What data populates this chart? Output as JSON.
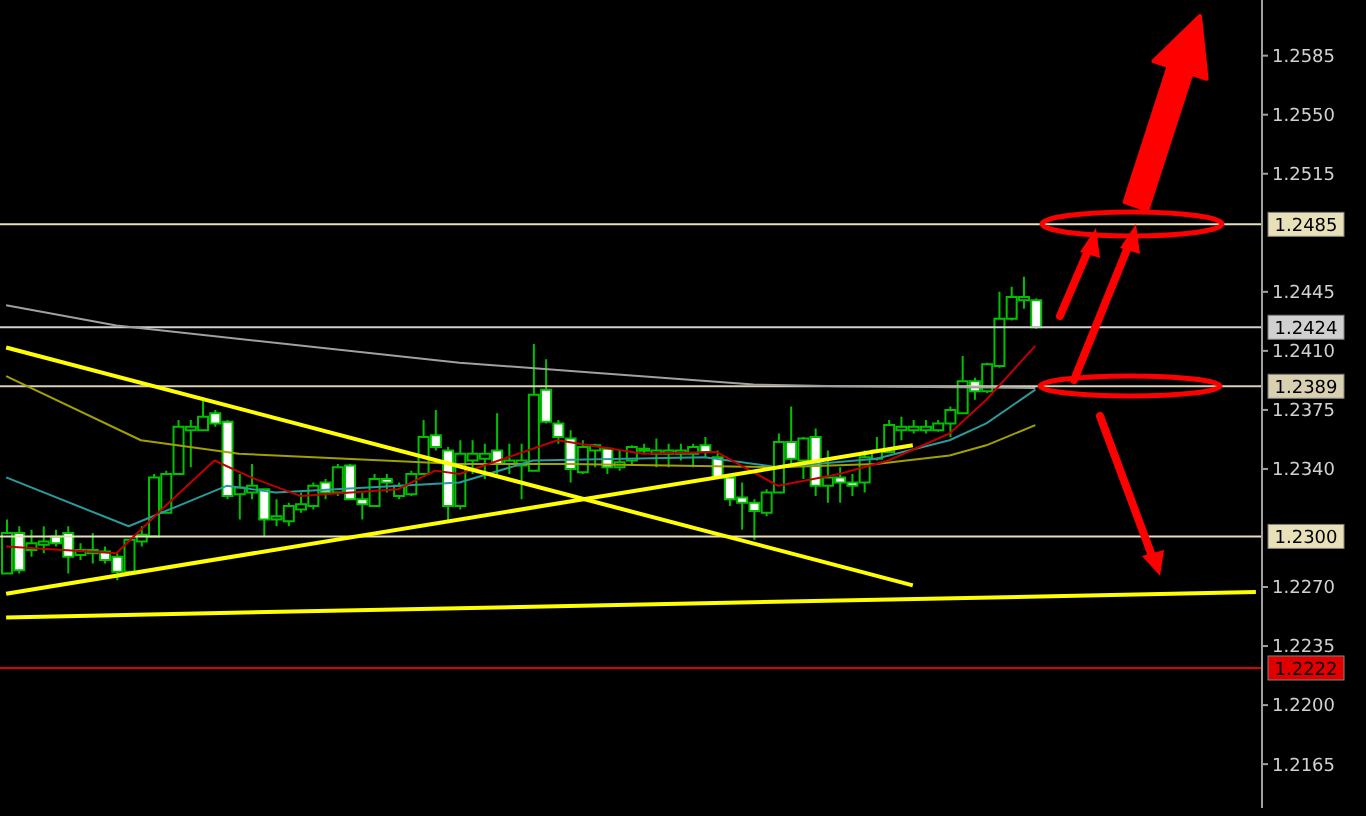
{
  "chart_data": {
    "type": "candlestick",
    "color": "#00c000",
    "categories": [
      null,
      null,
      null,
      null,
      null,
      null,
      null,
      null,
      null,
      null,
      null,
      null,
      null,
      null,
      null,
      null,
      null,
      null,
      null,
      null,
      null,
      null,
      null,
      null,
      null,
      null,
      null,
      null,
      null,
      null,
      null,
      null,
      null,
      null,
      null,
      null,
      null,
      null,
      null,
      null,
      null,
      null,
      null,
      null,
      null,
      null,
      null,
      null,
      null,
      null,
      null,
      null,
      null,
      null,
      null,
      null,
      null,
      null,
      null,
      null,
      null,
      null,
      null,
      null,
      null,
      null,
      null,
      null,
      null,
      null,
      null,
      null,
      null,
      null,
      null,
      null,
      null,
      null,
      null,
      null,
      null,
      null,
      null,
      null,
      null,
      null,
      null,
      null,
      null,
      null,
      null,
      null,
      null,
      null,
      null,
      null,
      null,
      null,
      null,
      null,
      null,
      null,
      null
    ],
    "ohlc": [
      [
        1.2278,
        1.231,
        1.2278,
        1.2302
      ],
      [
        1.2302,
        1.2306,
        1.2278,
        1.228
      ],
      [
        1.2292,
        1.2304,
        1.2288,
        1.2296
      ],
      [
        1.2295,
        1.2306,
        1.229,
        1.2297
      ],
      [
        1.23,
        1.2304,
        1.2294,
        1.2296
      ],
      [
        1.2302,
        1.2306,
        1.2278,
        1.2288
      ],
      [
        1.2289,
        1.2296,
        1.2286,
        1.2292
      ],
      [
        1.229,
        1.2302,
        1.2284,
        1.2292
      ],
      [
        1.2291,
        1.2294,
        1.2284,
        1.2286
      ],
      [
        1.2288,
        1.229,
        1.2274,
        1.2279
      ],
      [
        1.2279,
        1.2298,
        1.2278,
        1.2298
      ],
      [
        1.2297,
        1.2306,
        1.2294,
        1.2301
      ],
      [
        1.23,
        1.2337,
        1.23,
        1.2335
      ],
      [
        1.2314,
        1.2339,
        1.2314,
        1.2337
      ],
      [
        1.2337,
        1.2369,
        1.2337,
        1.2365
      ],
      [
        1.2363,
        1.2369,
        1.2341,
        1.2365
      ],
      [
        1.2363,
        1.2381,
        1.2363,
        1.2371
      ],
      [
        1.2373,
        1.2375,
        1.2365,
        1.2367
      ],
      [
        1.2368,
        1.2369,
        1.2322,
        1.2324
      ],
      [
        1.2325,
        1.2337,
        1.231,
        1.2329
      ],
      [
        1.2326,
        1.2343,
        1.2322,
        1.233
      ],
      [
        1.2328,
        1.2328,
        1.23,
        1.231
      ],
      [
        1.231,
        1.2322,
        1.2306,
        1.2312
      ],
      [
        1.2309,
        1.232,
        1.2306,
        1.2318
      ],
      [
        1.2316,
        1.2326,
        1.2314,
        1.2319
      ],
      [
        1.2318,
        1.2332,
        1.2316,
        1.233
      ],
      [
        1.2332,
        1.2334,
        1.2322,
        1.2326
      ],
      [
        1.2326,
        1.2343,
        1.2324,
        1.2341
      ],
      [
        1.2342,
        1.2343,
        1.2322,
        1.2322
      ],
      [
        1.2322,
        1.2326,
        1.231,
        1.2319
      ],
      [
        1.2318,
        1.2337,
        1.2318,
        1.2334
      ],
      [
        1.2334,
        1.2337,
        1.2326,
        1.2332
      ],
      [
        1.2324,
        1.2332,
        1.2322,
        1.233
      ],
      [
        1.2325,
        1.2339,
        1.2324,
        1.2337
      ],
      [
        1.2337,
        1.2369,
        1.2337,
        1.2359
      ],
      [
        1.236,
        1.2375,
        1.2351,
        1.2353
      ],
      [
        1.2351,
        1.2353,
        1.2308,
        1.2318
      ],
      [
        1.2318,
        1.2357,
        1.2316,
        1.2349
      ],
      [
        1.2345,
        1.2357,
        1.2337,
        1.2349
      ],
      [
        1.2346,
        1.2355,
        1.2334,
        1.2349
      ],
      [
        1.2351,
        1.2373,
        1.2337,
        1.2343
      ],
      [
        1.2343,
        1.2355,
        1.2337,
        1.2345
      ],
      [
        1.2342,
        1.2355,
        1.2322,
        1.2345
      ],
      [
        1.2339,
        1.2414,
        1.2339,
        1.2384
      ],
      [
        1.2387,
        1.2405,
        1.2367,
        1.2368
      ],
      [
        1.2367,
        1.2369,
        1.2355,
        1.2359
      ],
      [
        1.2358,
        1.2363,
        1.2332,
        1.234
      ],
      [
        1.2338,
        1.2357,
        1.2337,
        1.2353
      ],
      [
        1.2351,
        1.2355,
        1.2341,
        1.2354
      ],
      [
        1.2352,
        1.2353,
        1.2337,
        1.2341
      ],
      [
        1.2341,
        1.2351,
        1.2339,
        1.2344
      ],
      [
        1.2345,
        1.2354,
        1.2343,
        1.2353
      ],
      [
        1.2351,
        1.2355,
        1.2349,
        1.2352
      ],
      [
        1.2349,
        1.2358,
        1.2341,
        1.2351
      ],
      [
        1.2349,
        1.2355,
        1.2341,
        1.2351
      ],
      [
        1.2349,
        1.2355,
        1.2345,
        1.2351
      ],
      [
        1.2349,
        1.2355,
        1.2341,
        1.2353
      ],
      [
        1.2354,
        1.2359,
        1.2347,
        1.235
      ],
      [
        1.2347,
        1.2351,
        1.2334,
        1.2335
      ],
      [
        1.2335,
        1.2337,
        1.2318,
        1.2322
      ],
      [
        1.2323,
        1.2332,
        1.2304,
        1.232
      ],
      [
        1.232,
        1.2322,
        1.2298,
        1.2315
      ],
      [
        1.2314,
        1.2328,
        1.2312,
        1.2326
      ],
      [
        1.2326,
        1.2361,
        1.2326,
        1.2356
      ],
      [
        1.2356,
        1.2377,
        1.2343,
        1.2346
      ],
      [
        1.2345,
        1.2359,
        1.2334,
        1.2358
      ],
      [
        1.2359,
        1.2364,
        1.2324,
        1.233
      ],
      [
        1.233,
        1.2351,
        1.232,
        1.2335
      ],
      [
        1.2335,
        1.2341,
        1.232,
        1.2332
      ],
      [
        1.2332,
        1.2337,
        1.2324,
        1.233
      ],
      [
        1.2332,
        1.2351,
        1.2326,
        1.2347
      ],
      [
        1.2346,
        1.2359,
        1.2345,
        1.2351
      ],
      [
        1.235,
        1.2369,
        1.235,
        1.2366
      ],
      [
        1.2363,
        1.2371,
        1.2357,
        1.2365
      ],
      [
        1.2363,
        1.2369,
        1.2361,
        1.2365
      ],
      [
        1.2363,
        1.2369,
        1.2361,
        1.2365
      ],
      [
        1.2363,
        1.2369,
        1.2362,
        1.2367
      ],
      [
        1.2367,
        1.2377,
        1.2359,
        1.2375
      ],
      [
        1.2373,
        1.2407,
        1.2373,
        1.2392
      ],
      [
        1.2392,
        1.2394,
        1.2381,
        1.2386
      ],
      [
        1.2386,
        1.2403,
        1.2385,
        1.2402
      ],
      [
        1.2401,
        1.2445,
        1.24,
        1.2429
      ],
      [
        1.2429,
        1.2448,
        1.2428,
        1.2442
      ],
      [
        1.244,
        1.2454,
        1.2435,
        1.2442
      ],
      [
        1.244,
        1.2441,
        1.2423,
        1.2424
      ],
      null,
      null,
      null,
      null,
      null,
      null,
      null,
      null,
      null,
      null,
      null,
      null,
      null,
      null,
      null,
      null,
      null,
      null
    ],
    "series": [
      {
        "type": "line",
        "color": "#a0a0a0",
        "values": [
          1.2437,
          null,
          null,
          null,
          null,
          null,
          null,
          null,
          null,
          1.2425,
          null,
          null,
          null,
          null,
          null,
          null,
          null,
          null,
          null,
          null,
          null,
          null,
          null,
          null,
          null,
          null,
          null,
          null,
          null,
          null,
          null,
          null,
          null,
          null,
          null,
          null,
          null,
          1.2403,
          null,
          null,
          null,
          null,
          null,
          null,
          null,
          null,
          null,
          null,
          1.2397,
          null,
          null,
          null,
          null,
          null,
          null,
          null,
          null,
          null,
          null,
          null,
          null,
          1.239,
          null,
          null,
          null,
          null,
          null,
          null,
          1.2389,
          null,
          null,
          null,
          null,
          null,
          null,
          null,
          null,
          null,
          null,
          null,
          null,
          null,
          null,
          null,
          1.2388,
          null,
          null,
          null,
          null,
          null,
          null,
          null,
          null,
          null,
          null,
          null,
          null,
          null,
          null,
          null,
          null,
          null,
          null
        ]
      },
      {
        "type": "line",
        "color": "#a0a000",
        "values": [
          1.2395,
          null,
          null,
          null,
          null,
          null,
          null,
          null,
          null,
          null,
          null,
          1.2357,
          null,
          null,
          null,
          null,
          null,
          null,
          null,
          1.2349,
          null,
          null,
          null,
          null,
          null,
          null,
          null,
          null,
          null,
          null,
          null,
          null,
          null,
          null,
          null,
          null,
          null,
          1.2343,
          null,
          null,
          null,
          null,
          null,
          null,
          null,
          null,
          1.2343,
          null,
          null,
          null,
          null,
          null,
          null,
          null,
          null,
          null,
          null,
          null,
          null,
          null,
          null,
          null,
          null,
          1.2341,
          null,
          null,
          null,
          null,
          null,
          null,
          null,
          1.2343,
          null,
          null,
          null,
          null,
          null,
          1.2348,
          null,
          null,
          1.2354,
          null,
          null,
          null,
          1.2366,
          null,
          null,
          null,
          null,
          null,
          null,
          null,
          null,
          null,
          null,
          null,
          null,
          null,
          null,
          null,
          null,
          null,
          null
        ]
      },
      {
        "type": "line",
        "color": "#2a9a9a",
        "values": [
          1.2335,
          null,
          null,
          null,
          null,
          null,
          null,
          null,
          null,
          null,
          1.2306,
          null,
          null,
          null,
          1.2318,
          null,
          null,
          null,
          1.233,
          null,
          null,
          null,
          1.2326,
          null,
          null,
          null,
          null,
          null,
          null,
          null,
          null,
          null,
          null,
          null,
          null,
          null,
          null,
          1.2332,
          null,
          null,
          null,
          null,
          null,
          1.2345,
          null,
          null,
          null,
          null,
          null,
          null,
          null,
          null,
          null,
          null,
          null,
          null,
          null,
          1.2347,
          null,
          null,
          null,
          null,
          null,
          1.2341,
          null,
          null,
          null,
          null,
          null,
          null,
          null,
          1.2346,
          null,
          null,
          null,
          null,
          null,
          1.2357,
          null,
          null,
          1.2367,
          null,
          null,
          null,
          1.2387,
          null,
          null,
          null,
          null,
          null,
          null,
          null,
          null,
          null,
          null,
          null,
          null,
          null,
          null,
          null,
          null,
          null,
          null
        ]
      },
      {
        "type": "line",
        "color": "#c00000",
        "values": [
          1.2294,
          null,
          null,
          null,
          null,
          null,
          null,
          null,
          null,
          1.229,
          null,
          null,
          null,
          1.2318,
          null,
          null,
          null,
          1.2345,
          null,
          null,
          1.2335,
          null,
          null,
          null,
          1.2324,
          null,
          null,
          null,
          null,
          null,
          null,
          null,
          1.2328,
          null,
          null,
          1.2339,
          null,
          1.2337,
          null,
          null,
          null,
          null,
          null,
          null,
          null,
          1.2357,
          null,
          null,
          null,
          null,
          null,
          null,
          1.2349,
          null,
          null,
          null,
          null,
          null,
          1.235,
          null,
          null,
          null,
          null,
          1.233,
          null,
          null,
          null,
          null,
          1.2337,
          null,
          null,
          null,
          1.2345,
          null,
          null,
          null,
          null,
          1.2361,
          null,
          null,
          1.2381,
          null,
          null,
          null,
          1.2413,
          null,
          null,
          null,
          null,
          null,
          null,
          null,
          null,
          null,
          null,
          null,
          null,
          null,
          null,
          null,
          null,
          null,
          null
        ]
      },
      {
        "type": "line",
        "color": "#ffff00",
        "values": [
          1.2412,
          null,
          null,
          null,
          null,
          null,
          null,
          null,
          null,
          null,
          null,
          null,
          null,
          null,
          null,
          null,
          null,
          null,
          null,
          null,
          null,
          null,
          null,
          null,
          null,
          null,
          null,
          null,
          null,
          null,
          null,
          null,
          null,
          null,
          null,
          null,
          null,
          null,
          null,
          null,
          null,
          null,
          null,
          null,
          null,
          null,
          null,
          null,
          null,
          null,
          null,
          null,
          null,
          null,
          null,
          null,
          null,
          null,
          null,
          null,
          null,
          null,
          null,
          null,
          null,
          null,
          null,
          null,
          null,
          null,
          null,
          null,
          null,
          null,
          1.2271,
          null,
          null,
          null,
          null,
          null,
          null,
          null,
          null,
          null,
          null,
          null,
          null,
          null,
          null,
          null,
          null,
          null,
          null,
          null,
          null,
          null,
          null,
          null,
          null,
          null,
          null,
          null,
          null
        ]
      },
      {
        "type": "line",
        "color": "#ffff00",
        "values": [
          1.2266,
          null,
          null,
          null,
          null,
          null,
          null,
          null,
          null,
          null,
          null,
          null,
          null,
          null,
          null,
          null,
          null,
          null,
          null,
          null,
          null,
          null,
          null,
          null,
          null,
          null,
          null,
          null,
          null,
          null,
          null,
          null,
          null,
          null,
          null,
          null,
          null,
          null,
          null,
          null,
          null,
          null,
          null,
          null,
          null,
          null,
          null,
          null,
          null,
          null,
          null,
          null,
          null,
          null,
          null,
          null,
          null,
          null,
          null,
          null,
          null,
          null,
          null,
          null,
          null,
          null,
          null,
          null,
          null,
          null,
          null,
          null,
          null,
          null,
          1.2354,
          null,
          null,
          null,
          null,
          null,
          null,
          null,
          null,
          null,
          null,
          null,
          null,
          null,
          null,
          null,
          null,
          null,
          null,
          null,
          null,
          null,
          null,
          null,
          null,
          null,
          null,
          null,
          null
        ]
      },
      {
        "type": "line",
        "color": "#ffff00",
        "values": [
          1.2252,
          null,
          null,
          null,
          null,
          null,
          null,
          null,
          null,
          null,
          null,
          null,
          null,
          null,
          null,
          null,
          null,
          null,
          null,
          null,
          null,
          null,
          null,
          null,
          null,
          null,
          null,
          null,
          null,
          null,
          null,
          null,
          null,
          null,
          null,
          null,
          null,
          null,
          null,
          null,
          null,
          null,
          null,
          null,
          null,
          null,
          null,
          null,
          null,
          null,
          null,
          null,
          null,
          null,
          null,
          null,
          null,
          null,
          null,
          null,
          null,
          null,
          null,
          null,
          null,
          null,
          null,
          null,
          null,
          null,
          null,
          null,
          null,
          null,
          null,
          null,
          null,
          null,
          null,
          null,
          null,
          null,
          null,
          null,
          null,
          null,
          null,
          null,
          null,
          null,
          null,
          null,
          null,
          null,
          null,
          null,
          null,
          null,
          null,
          null,
          null,
          null,
          1.2267
        ]
      }
    ],
    "ref_lines": [
      {
        "axis": "y",
        "value": 1.2485,
        "label": "1.2485",
        "color": "#e8e0b8"
      },
      {
        "axis": "y",
        "value": 1.2424,
        "label": "1.2424",
        "color": "#d0d0d0"
      },
      {
        "axis": "y",
        "value": 1.2389,
        "label": "1.2389",
        "color": "#d8d0b0"
      },
      {
        "axis": "y",
        "value": 1.23,
        "label": "1.2300",
        "color": "#e8e0b8"
      },
      {
        "axis": "y",
        "value": 1.2222,
        "label": "1.2222",
        "color": "#e00000"
      }
    ],
    "ylim": [
      1.2139,
      1.2618
    ],
    "yticks": [
      1.2165,
      {
        "value": 1.22,
        "label": "1.2200"
      },
      1.2235,
      {
        "value": 1.227,
        "label": "1.2270"
      },
      {
        "value": 1.234,
        "label": "1.2340"
      },
      1.2375,
      {
        "value": 1.241,
        "label": "1.2410"
      },
      1.2445,
      1.2515,
      {
        "value": 1.255,
        "label": "1.2550"
      },
      1.2585
    ],
    "tick_labels": "y",
    "grid": false,
    "marker": "none"
  }
}
